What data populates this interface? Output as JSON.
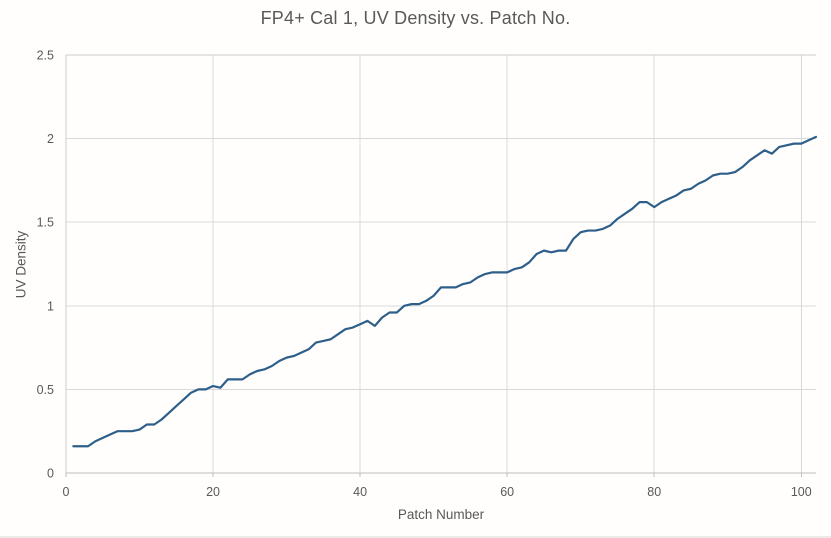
{
  "chart_data": {
    "type": "line",
    "title": "FP4+ Cal 1, UV Density vs. Patch No.",
    "xlabel": "Patch Number",
    "ylabel": "UV Density",
    "xlim": [
      0,
      102
    ],
    "ylim": [
      0,
      2.5
    ],
    "x_ticks": [
      0,
      20,
      40,
      60,
      80,
      100
    ],
    "y_ticks": [
      0,
      0.5,
      1,
      1.5,
      2,
      2.5
    ],
    "y_tick_labels": [
      "0",
      "0.5",
      "1",
      "1.5",
      "2",
      "2.5"
    ],
    "grid": true,
    "legend": false,
    "series": [
      {
        "name": "UV Density",
        "color": "#2e5f8a",
        "x_start": 1,
        "x_step": 1,
        "values": [
          0.16,
          0.16,
          0.16,
          0.19,
          0.21,
          0.23,
          0.25,
          0.25,
          0.25,
          0.26,
          0.29,
          0.29,
          0.32,
          0.36,
          0.4,
          0.44,
          0.48,
          0.5,
          0.5,
          0.52,
          0.51,
          0.56,
          0.56,
          0.56,
          0.59,
          0.61,
          0.62,
          0.64,
          0.67,
          0.69,
          0.7,
          0.72,
          0.74,
          0.78,
          0.79,
          0.8,
          0.83,
          0.86,
          0.87,
          0.89,
          0.91,
          0.88,
          0.93,
          0.96,
          0.96,
          1.0,
          1.01,
          1.01,
          1.03,
          1.06,
          1.11,
          1.11,
          1.11,
          1.13,
          1.14,
          1.17,
          1.19,
          1.2,
          1.2,
          1.2,
          1.22,
          1.23,
          1.26,
          1.31,
          1.33,
          1.32,
          1.33,
          1.33,
          1.4,
          1.44,
          1.45,
          1.45,
          1.46,
          1.48,
          1.52,
          1.55,
          1.58,
          1.62,
          1.62,
          1.59,
          1.62,
          1.64,
          1.66,
          1.69,
          1.7,
          1.73,
          1.75,
          1.78,
          1.79,
          1.79,
          1.8,
          1.83,
          1.87,
          1.9,
          1.93,
          1.91,
          1.95,
          1.96,
          1.97,
          1.97,
          1.99,
          2.01
        ]
      }
    ],
    "colors": {
      "series_line": "#2e5f8a",
      "gridline": "#d9d9d9",
      "plot_border": "#cecccc",
      "axis_line": "#bfbfbf",
      "text": "#595959",
      "background": "#fffefd"
    }
  }
}
